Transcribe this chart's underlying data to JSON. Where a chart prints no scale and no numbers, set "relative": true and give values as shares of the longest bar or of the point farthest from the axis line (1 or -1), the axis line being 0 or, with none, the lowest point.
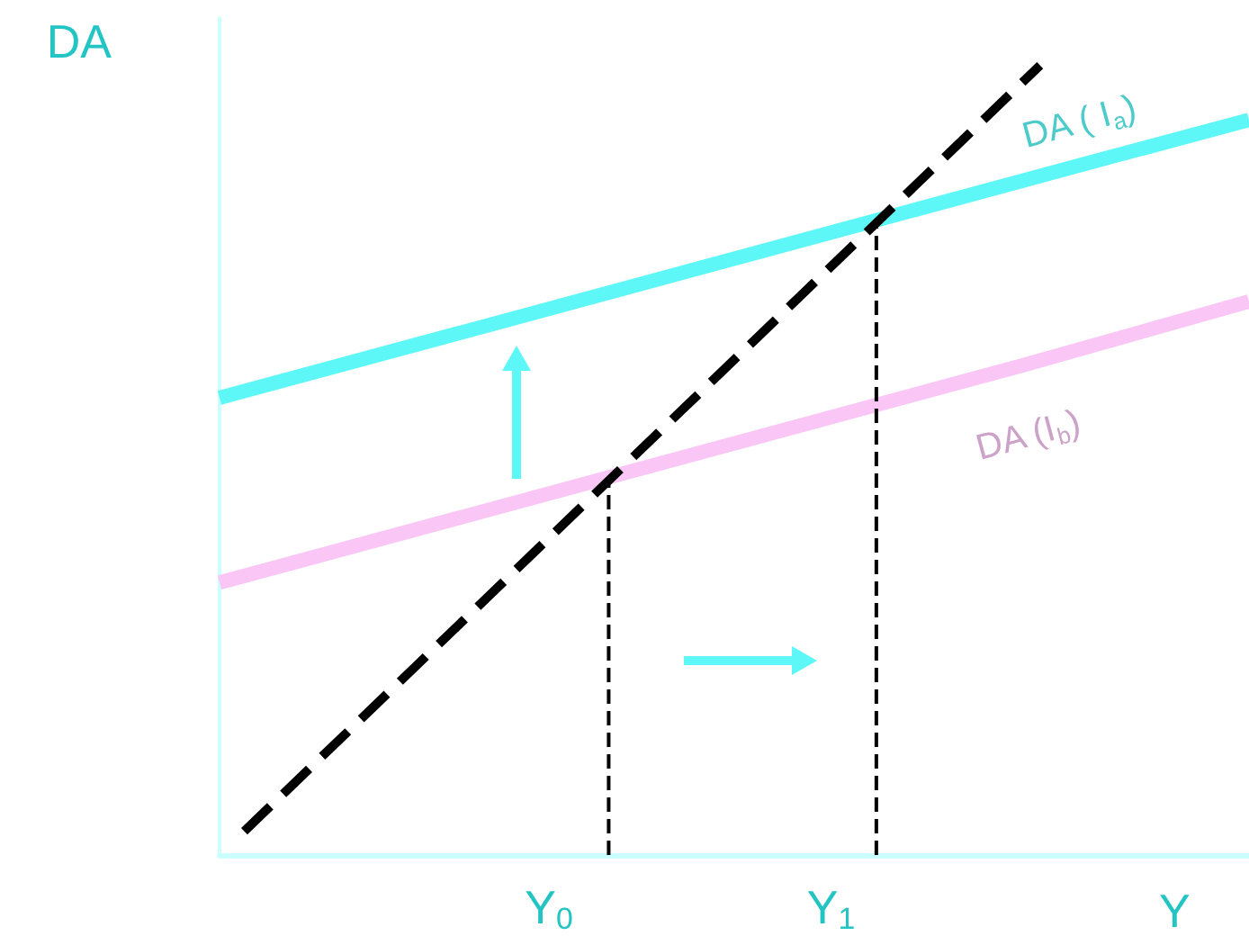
{
  "chart_data": {
    "type": "line",
    "relative": true,
    "xlabel": "Y",
    "ylabel": "DA",
    "xlim": [
      0,
      1
    ],
    "xticks": [
      {
        "value": 0.32,
        "label": "Y$_{0}$"
      },
      {
        "value": 0.594,
        "label": "Y$_{1}$"
      }
    ],
    "grid": false,
    "legend": false,
    "marker": "none",
    "tick_labels": "x",
    "series": [
      {
        "name": "DA ( I$_{a}$)",
        "color": "#5ef7f7",
        "x": [
          0,
          0.84,
          1
        ],
        "values": [
          0.579,
          0.875,
          0.931
        ]
      },
      {
        "name": "DA (I$_{b}$)",
        "color": "#f9c6f5",
        "x": [
          0,
          0.78,
          1
        ],
        "values": [
          0.345,
          0.62,
          0.701
        ]
      },
      {
        "color": "#000000",
        "line_style": "dashed",
        "x": [
          0.024,
          0.797
        ],
        "values": [
          0.03,
          1
        ]
      },
      {
        "color": "#000000",
        "line_style": "dashed",
        "x": [
          0.378,
          0.378
        ],
        "values": [
          0,
          0.476
        ]
      },
      {
        "color": "#000000",
        "line_style": "dashed",
        "x": [
          0.638,
          0.638
        ],
        "values": [
          0,
          0.8
        ]
      }
    ]
  }
}
